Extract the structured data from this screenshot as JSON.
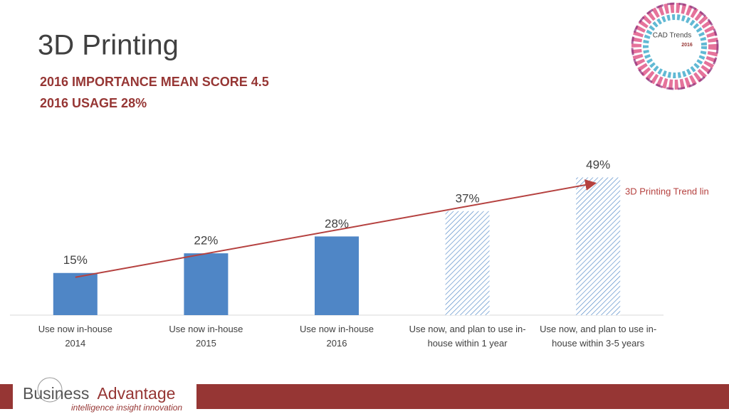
{
  "chart_data": {
    "type": "bar",
    "title": "3D Printing",
    "subtitles": [
      "2016 IMPORTANCE MEAN SCORE 4.5",
      "2016 USAGE 28%"
    ],
    "categories": [
      [
        "Use now in-house",
        "2014"
      ],
      [
        "Use now in-house",
        "2015"
      ],
      [
        "Use now in-house",
        "2016"
      ],
      [
        "Use now, and plan to use in-",
        "house within 1 year"
      ],
      [
        "Use now, and plan to use in-",
        "house within 3-5 years"
      ]
    ],
    "values": [
      15,
      22,
      28,
      37,
      49
    ],
    "value_labels": [
      "15%",
      "22%",
      "28%",
      "37%",
      "49%"
    ],
    "hatched": [
      false,
      false,
      false,
      true,
      true
    ],
    "color": "#4f86c6",
    "annotation": "3D Printing Trend lin",
    "annotation_color": "#b5413f"
  },
  "logo": {
    "title": "CAD Trends",
    "year": "2016"
  },
  "footer": {
    "brand_first": "Business",
    "brand_second": "Advantage",
    "tagline": "intelligence insight innovation"
  }
}
